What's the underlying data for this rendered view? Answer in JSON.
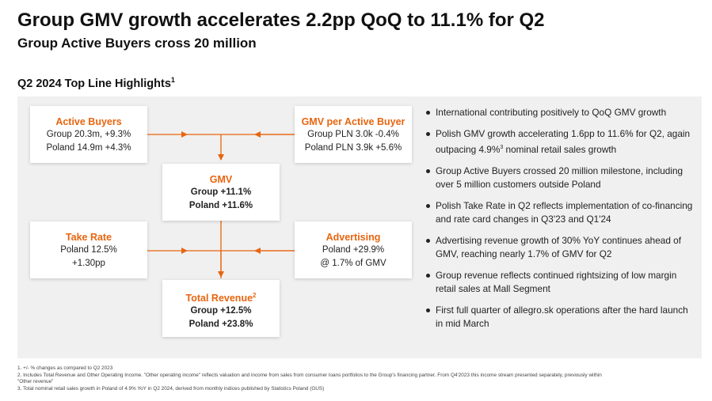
{
  "header": {
    "title": "Group GMV growth accelerates 2.2pp QoQ to 11.1% for Q2",
    "subtitle": "Group Active Buyers cross 20 million"
  },
  "section": {
    "heading": "Q2 2024 Top Line Highlights",
    "heading_note": "1"
  },
  "cards": {
    "active_buyers": {
      "title": "Active Buyers",
      "line1": "Group 20.3m, +9.3%",
      "line2": "Poland 14.9m +4.3%"
    },
    "gmv_per_buyer": {
      "title": "GMV per Active Buyer",
      "line1": "Group PLN 3.0k -0.4%",
      "line2": "Poland PLN 3.9k +5.6%"
    },
    "gmv": {
      "title": "GMV",
      "line1": "Group +11.1%",
      "line2": "Poland +11.6%"
    },
    "take_rate": {
      "title": "Take Rate",
      "line1": "Poland 12.5%",
      "line2": "+1.30pp"
    },
    "advertising": {
      "title": "Advertising",
      "line1": "Poland +29.9%",
      "line2": "@ 1.7% of GMV"
    },
    "total_revenue": {
      "title": "Total Revenue",
      "title_note": "2",
      "line1": "Group +12.5%",
      "line2": "Poland +23.8%"
    }
  },
  "bullets": [
    {
      "text": "International contributing positively to QoQ GMV growth"
    },
    {
      "pre": "Polish GMV growth accelerating 1.6pp to 11.6% for Q2, again outpacing 4.9%",
      "note": "3",
      "post": " nominal retail sales growth"
    },
    {
      "text": "Group Active Buyers crossed 20 million milestone, including over 5 million customers outside Poland"
    },
    {
      "text": "Polish Take Rate in Q2 reflects implementation of co-financing and rate card changes in Q3'23 and Q1'24"
    },
    {
      "text": "Advertising revenue growth of 30% YoY continues ahead of GMV, reaching nearly 1.7% of GMV for Q2"
    },
    {
      "text": "Group revenue reflects continued rightsizing of low margin retail sales at Mall Segment"
    },
    {
      "text": "First full quarter of allegro.sk operations after the hard launch in mid March"
    }
  ],
  "footnotes": [
    "1. +/- % changes as compared to Q2 2023",
    "2. Includes Total Revenue and Other Operating Income. \"Other operating income\" reflects valuation and income from sales from consumer loans portfolios to the Group's financing partner. From Q4'2023 this income stream presented separately, previously within",
    "\"Other revenue\"",
    "3. Total nominal retail sales growth in Poland of 4.9% YoY in Q2 2024, derived from monthly indices published by Statistics Poland (GUS)"
  ],
  "colors": {
    "accent": "#e8650f",
    "panel": "#f0f0f0"
  }
}
